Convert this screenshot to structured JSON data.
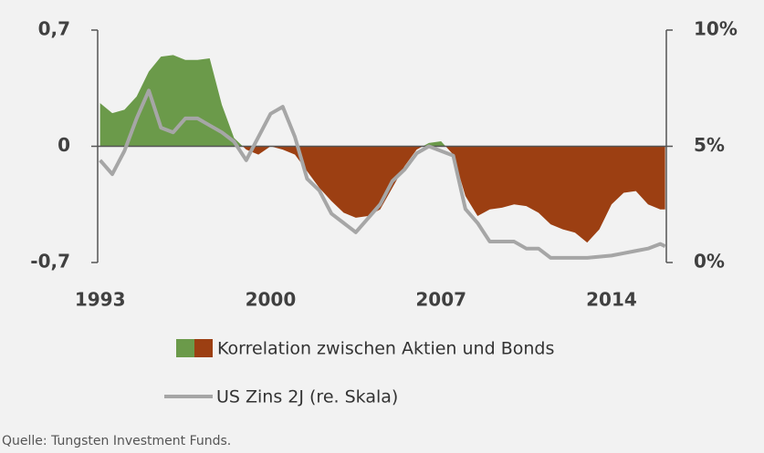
{
  "chart_data": {
    "type": "area",
    "x": [
      1993,
      1993.5,
      1994,
      1994.5,
      1995,
      1995.5,
      1996,
      1996.5,
      1997,
      1997.5,
      1998,
      1998.5,
      1999,
      1999.5,
      2000,
      2000.5,
      2001,
      2001.5,
      2002,
      2002.5,
      2003,
      2003.5,
      2004,
      2004.5,
      2005,
      2005.5,
      2006,
      2006.5,
      2007,
      2007.5,
      2008,
      2008.5,
      2009,
      2009.5,
      2010,
      2010.5,
      2011,
      2011.5,
      2012,
      2012.5,
      2013,
      2013.5,
      2014,
      2014.5,
      2015,
      2015.5,
      2016,
      2016.2
    ],
    "series": [
      {
        "name": "Korrelation zwischen Aktien und Bonds",
        "type": "area",
        "color": "#6b9a4a",
        "negative_color": "#9c3f12",
        "values": [
          0.26,
          0.2,
          0.22,
          0.3,
          0.45,
          0.54,
          0.55,
          0.52,
          0.52,
          0.53,
          0.25,
          0.05,
          -0.02,
          -0.05,
          0.0,
          -0.02,
          -0.05,
          -0.15,
          -0.25,
          -0.33,
          -0.4,
          -0.43,
          -0.42,
          -0.38,
          -0.25,
          -0.12,
          -0.02,
          0.02,
          0.03,
          -0.05,
          -0.3,
          -0.42,
          -0.38,
          -0.37,
          -0.35,
          -0.36,
          -0.4,
          -0.47,
          -0.5,
          -0.52,
          -0.58,
          -0.5,
          -0.35,
          -0.28,
          -0.27,
          -0.35,
          -0.38,
          -0.38
        ]
      },
      {
        "name": "US Zins 2J (re. Skala)",
        "type": "line",
        "axis": "y2",
        "color": "#a6a6a6",
        "values": [
          4.4,
          3.8,
          4.8,
          6.2,
          7.4,
          5.8,
          5.6,
          6.2,
          6.2,
          5.9,
          5.6,
          5.2,
          4.4,
          5.4,
          6.4,
          6.7,
          5.4,
          3.6,
          3.1,
          2.1,
          1.7,
          1.3,
          1.9,
          2.5,
          3.5,
          4.0,
          4.7,
          5.0,
          4.8,
          4.6,
          2.3,
          1.7,
          0.9,
          0.9,
          0.9,
          0.6,
          0.6,
          0.2,
          0.2,
          0.2,
          0.2,
          0.25,
          0.3,
          0.4,
          0.5,
          0.6,
          0.8,
          0.7
        ]
      }
    ],
    "xlim": [
      1992.9,
      2016.25
    ],
    "xticks": [
      1993,
      2000,
      2007,
      2014
    ],
    "ylim": [
      -0.7,
      0.7
    ],
    "yticks": [
      {
        "value": 0.7,
        "label": "0,7"
      },
      0,
      {
        "value": -0.7,
        "label": "-0,7"
      }
    ],
    "y2lim": [
      0,
      10
    ],
    "y2ticks": [
      {
        "value": 10,
        "label": "10%"
      },
      {
        "value": 5,
        "label": "5%"
      },
      {
        "value": 0,
        "label": "0%"
      }
    ],
    "source": "Quelle: Tungsten Investment Funds."
  }
}
